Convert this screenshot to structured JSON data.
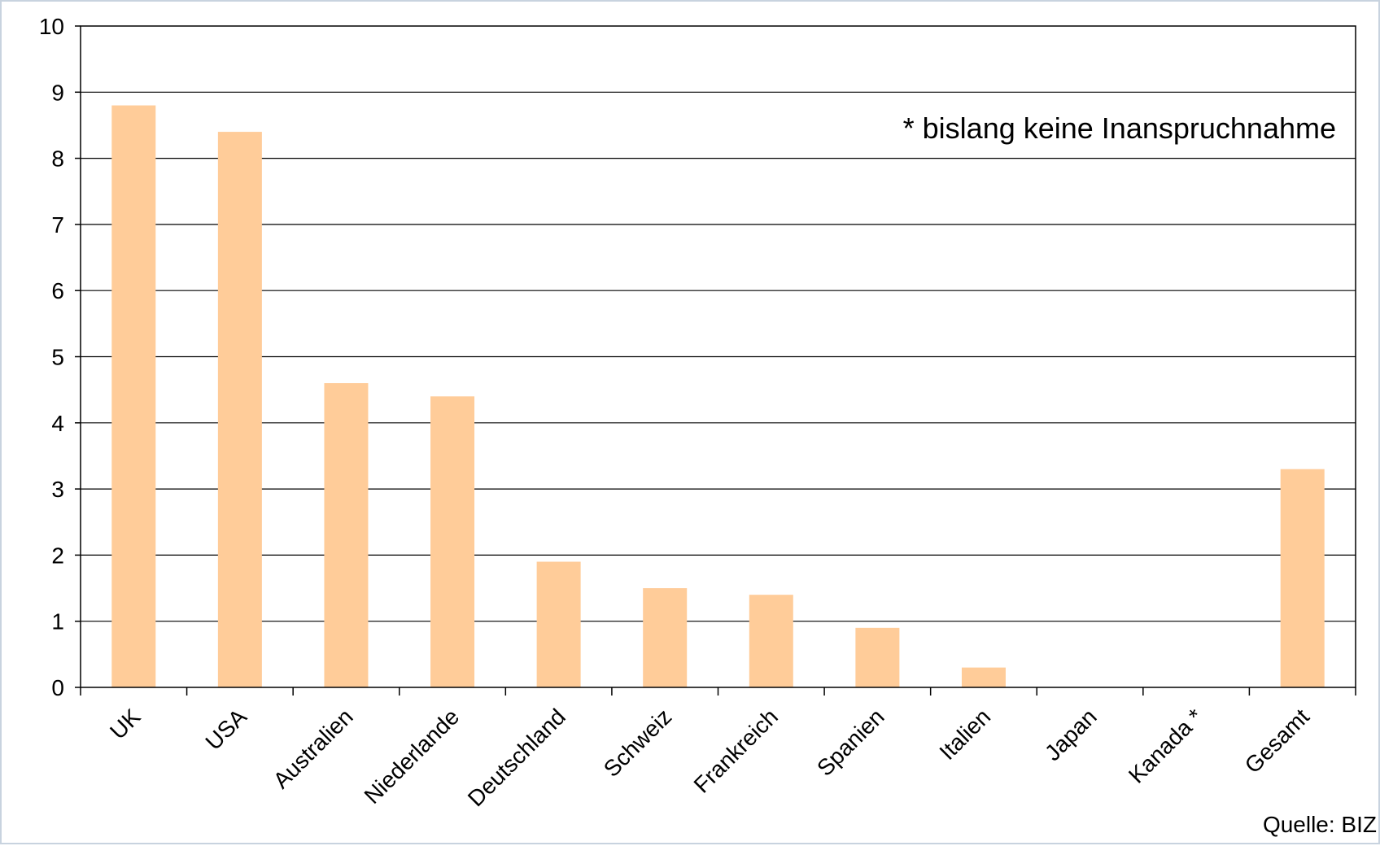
{
  "chart_data": {
    "type": "bar",
    "categories": [
      "UK",
      "USA",
      "Australien",
      "Niederlande",
      "Deutschland",
      "Schweiz",
      "Frankreich",
      "Spanien",
      "Italien",
      "Japan",
      "Kanada *",
      "Gesamt"
    ],
    "values": [
      8.8,
      8.4,
      4.6,
      4.4,
      1.9,
      1.5,
      1.4,
      0.9,
      0.3,
      0,
      0,
      3.3
    ],
    "ylim": [
      0,
      10
    ],
    "yticks": [
      0,
      1,
      2,
      3,
      4,
      5,
      6,
      7,
      8,
      9,
      10
    ],
    "grid": true,
    "bar_color": "#ffcc99",
    "annotation": "* bislang keine Inanspruchnahme",
    "source": "Quelle: BIZ",
    "title": "",
    "xlabel": "",
    "ylabel": ""
  }
}
